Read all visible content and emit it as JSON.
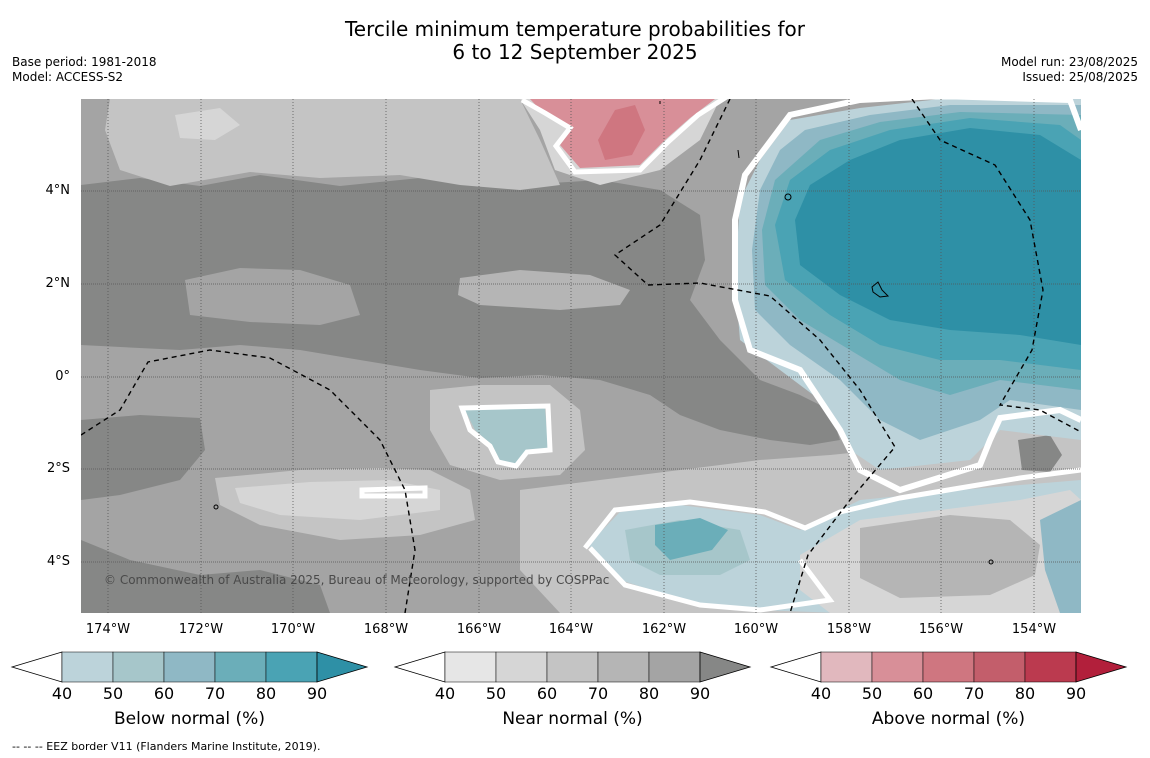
{
  "header": {
    "title_line1": "Tercile minimum temperature probabilities for",
    "title_line2": "6 to 12 September 2025",
    "base_period": "Base period: 1981-2018",
    "model": "Model: ACCESS-S2",
    "model_run": "Model run: 23/08/2025",
    "issued": "Issued: 25/08/2025"
  },
  "map": {
    "lat_labels": [
      "4°N",
      "2°N",
      "0°",
      "2°S",
      "4°S"
    ],
    "lon_labels": [
      "174°W",
      "172°W",
      "170°W",
      "168°W",
      "166°W",
      "164°W",
      "162°W",
      "160°W",
      "158°W",
      "156°W",
      "154°W"
    ],
    "copyright": "© Commonwealth of Australia 2025, Bureau of Meteorology, supported by COSPPac",
    "colors": {
      "near_40": "#e6e6e6",
      "near_50": "#d6d6d6",
      "near_60": "#c4c4c4",
      "near_70": "#b5b5b5",
      "near_80": "#a4a4a4",
      "near_90": "#868786",
      "below_40": "#bcd3da",
      "below_50": "#a6c6ca",
      "below_60": "#8fb8c5",
      "below_70": "#6baeb9",
      "below_80": "#4aa3b4",
      "below_90": "#2e90a6",
      "above_40": "#e1b8be",
      "above_50": "#d88f98",
      "above_60": "#cf7680",
      "above_70": "#c35e6b",
      "above_80": "#bb3a4f",
      "above_90": "#b21f3b"
    }
  },
  "colorbars": [
    {
      "title": "Below normal (%)",
      "ticks": [
        "40",
        "50",
        "60",
        "70",
        "80",
        "90"
      ],
      "colors": [
        "#bcd3da",
        "#a6c6ca",
        "#8fb8c5",
        "#6baeb9",
        "#4aa3b4",
        "#2e90a6"
      ]
    },
    {
      "title": "Near normal (%)",
      "ticks": [
        "40",
        "50",
        "60",
        "70",
        "80",
        "90"
      ],
      "colors": [
        "#e6e6e6",
        "#d6d6d6",
        "#c4c4c4",
        "#b5b5b5",
        "#a4a4a4",
        "#868786"
      ]
    },
    {
      "title": "Above normal (%)",
      "ticks": [
        "40",
        "50",
        "60",
        "70",
        "80",
        "90"
      ],
      "colors": [
        "#e1b8be",
        "#d88f98",
        "#cf7680",
        "#c35e6b",
        "#bb3a4f",
        "#b21f3b"
      ]
    }
  ],
  "footer": {
    "legend_line": "--  --  -- EEZ border V11 (Flanders Marine Institute, 2019)."
  }
}
